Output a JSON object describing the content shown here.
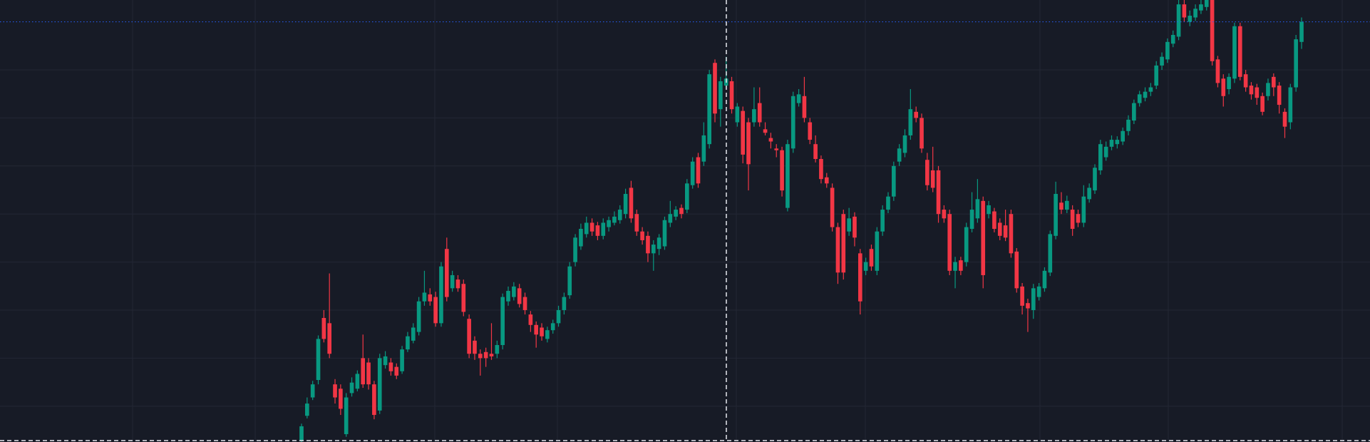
{
  "chart_data": {
    "type": "candlestick",
    "up_color": "#089981",
    "down_color": "#f23645",
    "grid": true,
    "price_line_color": "#2962ff",
    "ylim": [
      14,
      520
    ],
    "yticks": [
      55,
      110,
      165,
      220,
      275,
      330,
      385,
      440
    ],
    "price_line": 495,
    "candles": [
      {
        "open": 15,
        "high": 35,
        "low": 14,
        "close": 32
      },
      {
        "open": 44,
        "high": 65,
        "low": 41,
        "close": 58
      },
      {
        "open": 65,
        "high": 84,
        "low": 62,
        "close": 80
      },
      {
        "open": 85,
        "high": 136,
        "low": 80,
        "close": 132
      },
      {
        "open": 156,
        "high": 165,
        "low": 128,
        "close": 132
      },
      {
        "open": 150,
        "high": 207,
        "low": 110,
        "close": 115
      },
      {
        "open": 80,
        "high": 86,
        "low": 58,
        "close": 65
      },
      {
        "open": 75,
        "high": 80,
        "low": 45,
        "close": 52
      },
      {
        "open": 23,
        "high": 70,
        "low": 20,
        "close": 65
      },
      {
        "open": 70,
        "high": 88,
        "low": 66,
        "close": 82
      },
      {
        "open": 75,
        "high": 96,
        "low": 72,
        "close": 92
      },
      {
        "open": 110,
        "high": 137,
        "low": 76,
        "close": 80
      },
      {
        "open": 105,
        "high": 110,
        "low": 74,
        "close": 80
      },
      {
        "open": 80,
        "high": 84,
        "low": 40,
        "close": 45
      },
      {
        "open": 50,
        "high": 115,
        "low": 46,
        "close": 110
      },
      {
        "open": 102,
        "high": 118,
        "low": 98,
        "close": 112
      },
      {
        "open": 105,
        "high": 110,
        "low": 90,
        "close": 95
      },
      {
        "open": 100,
        "high": 104,
        "low": 86,
        "close": 90
      },
      {
        "open": 95,
        "high": 124,
        "low": 92,
        "close": 120
      },
      {
        "open": 120,
        "high": 140,
        "low": 117,
        "close": 135
      },
      {
        "open": 130,
        "high": 150,
        "low": 127,
        "close": 145
      },
      {
        "open": 140,
        "high": 180,
        "low": 136,
        "close": 175
      },
      {
        "open": 175,
        "high": 210,
        "low": 170,
        "close": 185
      },
      {
        "open": 183,
        "high": 190,
        "low": 170,
        "close": 175
      },
      {
        "open": 180,
        "high": 186,
        "low": 146,
        "close": 150
      },
      {
        "open": 150,
        "high": 220,
        "low": 146,
        "close": 215
      },
      {
        "open": 235,
        "high": 248,
        "low": 175,
        "close": 180
      },
      {
        "open": 190,
        "high": 210,
        "low": 186,
        "close": 205
      },
      {
        "open": 200,
        "high": 205,
        "low": 186,
        "close": 190
      },
      {
        "open": 195,
        "high": 200,
        "low": 158,
        "close": 163
      },
      {
        "open": 155,
        "high": 160,
        "low": 110,
        "close": 115
      },
      {
        "open": 130,
        "high": 135,
        "low": 108,
        "close": 115
      },
      {
        "open": 115,
        "high": 120,
        "low": 90,
        "close": 110
      },
      {
        "open": 117,
        "high": 122,
        "low": 100,
        "close": 110
      },
      {
        "open": 115,
        "high": 150,
        "low": 108,
        "close": 112
      },
      {
        "open": 115,
        "high": 130,
        "low": 110,
        "close": 125
      },
      {
        "open": 125,
        "high": 184,
        "low": 120,
        "close": 180
      },
      {
        "open": 175,
        "high": 192,
        "low": 170,
        "close": 187
      },
      {
        "open": 180,
        "high": 197,
        "low": 176,
        "close": 192
      },
      {
        "open": 190,
        "high": 195,
        "low": 168,
        "close": 172
      },
      {
        "open": 180,
        "high": 185,
        "low": 160,
        "close": 165
      },
      {
        "open": 160,
        "high": 164,
        "low": 140,
        "close": 148
      },
      {
        "open": 148,
        "high": 152,
        "low": 122,
        "close": 137
      },
      {
        "open": 145,
        "high": 150,
        "low": 130,
        "close": 135
      },
      {
        "open": 132,
        "high": 146,
        "low": 128,
        "close": 142
      },
      {
        "open": 142,
        "high": 154,
        "low": 138,
        "close": 150
      },
      {
        "open": 150,
        "high": 170,
        "low": 146,
        "close": 165
      },
      {
        "open": 165,
        "high": 185,
        "low": 160,
        "close": 180
      },
      {
        "open": 182,
        "high": 220,
        "low": 178,
        "close": 215
      },
      {
        "open": 220,
        "high": 252,
        "low": 215,
        "close": 248
      },
      {
        "open": 238,
        "high": 264,
        "low": 234,
        "close": 258
      },
      {
        "open": 252,
        "high": 272,
        "low": 248,
        "close": 265
      },
      {
        "open": 265,
        "high": 270,
        "low": 250,
        "close": 255
      },
      {
        "open": 262,
        "high": 266,
        "low": 245,
        "close": 250
      },
      {
        "open": 250,
        "high": 270,
        "low": 246,
        "close": 265
      },
      {
        "open": 260,
        "high": 272,
        "low": 255,
        "close": 268
      },
      {
        "open": 265,
        "high": 278,
        "low": 262,
        "close": 272
      },
      {
        "open": 268,
        "high": 285,
        "low": 264,
        "close": 280
      },
      {
        "open": 275,
        "high": 304,
        "low": 270,
        "close": 298
      },
      {
        "open": 305,
        "high": 313,
        "low": 265,
        "close": 270
      },
      {
        "open": 275,
        "high": 280,
        "low": 250,
        "close": 255
      },
      {
        "open": 255,
        "high": 260,
        "low": 240,
        "close": 245
      },
      {
        "open": 250,
        "high": 255,
        "low": 220,
        "close": 230
      },
      {
        "open": 230,
        "high": 245,
        "low": 210,
        "close": 240
      },
      {
        "open": 235,
        "high": 252,
        "low": 228,
        "close": 248
      },
      {
        "open": 238,
        "high": 272,
        "low": 234,
        "close": 268
      },
      {
        "open": 265,
        "high": 290,
        "low": 260,
        "close": 275
      },
      {
        "open": 272,
        "high": 284,
        "low": 268,
        "close": 280
      },
      {
        "open": 282,
        "high": 286,
        "low": 270,
        "close": 275
      },
      {
        "open": 280,
        "high": 315,
        "low": 276,
        "close": 310
      },
      {
        "open": 308,
        "high": 340,
        "low": 304,
        "close": 335
      },
      {
        "open": 340,
        "high": 345,
        "low": 305,
        "close": 310
      },
      {
        "open": 335,
        "high": 380,
        "low": 330,
        "close": 365
      },
      {
        "open": 355,
        "high": 440,
        "low": 350,
        "close": 435
      },
      {
        "open": 448,
        "high": 452,
        "low": 380,
        "close": 390
      },
      {
        "open": 395,
        "high": 432,
        "low": 375,
        "close": 427
      },
      {
        "open": 422,
        "high": 455,
        "low": 418,
        "close": 430
      },
      {
        "open": 427,
        "high": 432,
        "low": 390,
        "close": 395
      },
      {
        "open": 380,
        "high": 402,
        "low": 375,
        "close": 398
      },
      {
        "open": 393,
        "high": 398,
        "low": 333,
        "close": 343
      },
      {
        "open": 380,
        "high": 385,
        "low": 302,
        "close": 332
      },
      {
        "open": 380,
        "high": 420,
        "low": 375,
        "close": 395
      },
      {
        "open": 402,
        "high": 420,
        "low": 375,
        "close": 380
      },
      {
        "open": 372,
        "high": 380,
        "low": 365,
        "close": 368
      },
      {
        "open": 362,
        "high": 368,
        "low": 350,
        "close": 358
      },
      {
        "open": 350,
        "high": 355,
        "low": 340,
        "close": 348
      },
      {
        "open": 348,
        "high": 352,
        "low": 295,
        "close": 302
      },
      {
        "open": 282,
        "high": 360,
        "low": 278,
        "close": 355
      },
      {
        "open": 350,
        "high": 415,
        "low": 345,
        "close": 410
      },
      {
        "open": 402,
        "high": 418,
        "low": 398,
        "close": 412
      },
      {
        "open": 410,
        "high": 432,
        "low": 380,
        "close": 385
      },
      {
        "open": 380,
        "high": 385,
        "low": 355,
        "close": 360
      },
      {
        "open": 355,
        "high": 365,
        "low": 334,
        "close": 338
      },
      {
        "open": 338,
        "high": 342,
        "low": 310,
        "close": 315
      },
      {
        "open": 317,
        "high": 322,
        "low": 305,
        "close": 310
      },
      {
        "open": 305,
        "high": 310,
        "low": 255,
        "close": 260
      },
      {
        "open": 260,
        "high": 265,
        "low": 195,
        "close": 208
      },
      {
        "open": 275,
        "high": 280,
        "low": 200,
        "close": 208
      },
      {
        "open": 255,
        "high": 282,
        "low": 250,
        "close": 270
      },
      {
        "open": 272,
        "high": 277,
        "low": 238,
        "close": 248
      },
      {
        "open": 230,
        "high": 235,
        "low": 160,
        "close": 175
      },
      {
        "open": 210,
        "high": 225,
        "low": 205,
        "close": 220
      },
      {
        "open": 235,
        "high": 240,
        "low": 210,
        "close": 215
      },
      {
        "open": 210,
        "high": 260,
        "low": 205,
        "close": 255
      },
      {
        "open": 255,
        "high": 285,
        "low": 250,
        "close": 280
      },
      {
        "open": 280,
        "high": 300,
        "low": 276,
        "close": 295
      },
      {
        "open": 295,
        "high": 335,
        "low": 290,
        "close": 330
      },
      {
        "open": 335,
        "high": 355,
        "low": 330,
        "close": 350
      },
      {
        "open": 345,
        "high": 372,
        "low": 340,
        "close": 365
      },
      {
        "open": 365,
        "high": 418,
        "low": 360,
        "close": 395
      },
      {
        "open": 392,
        "high": 398,
        "low": 380,
        "close": 385
      },
      {
        "open": 385,
        "high": 390,
        "low": 345,
        "close": 350
      },
      {
        "open": 337,
        "high": 345,
        "low": 302,
        "close": 308
      },
      {
        "open": 325,
        "high": 352,
        "low": 300,
        "close": 305
      },
      {
        "open": 325,
        "high": 330,
        "low": 265,
        "close": 275
      },
      {
        "open": 280,
        "high": 285,
        "low": 265,
        "close": 270
      },
      {
        "open": 275,
        "high": 280,
        "low": 205,
        "close": 210
      },
      {
        "open": 210,
        "high": 226,
        "low": 190,
        "close": 220
      },
      {
        "open": 222,
        "high": 226,
        "low": 205,
        "close": 210
      },
      {
        "open": 220,
        "high": 265,
        "low": 215,
        "close": 260
      },
      {
        "open": 258,
        "high": 300,
        "low": 254,
        "close": 280
      },
      {
        "open": 270,
        "high": 315,
        "low": 265,
        "close": 292
      },
      {
        "open": 290,
        "high": 295,
        "low": 190,
        "close": 205
      },
      {
        "open": 275,
        "high": 290,
        "low": 270,
        "close": 285
      },
      {
        "open": 278,
        "high": 282,
        "low": 254,
        "close": 258
      },
      {
        "open": 265,
        "high": 270,
        "low": 245,
        "close": 250
      },
      {
        "open": 262,
        "high": 280,
        "low": 244,
        "close": 248
      },
      {
        "open": 275,
        "high": 280,
        "low": 225,
        "close": 230
      },
      {
        "open": 232,
        "high": 236,
        "low": 185,
        "close": 190
      },
      {
        "open": 192,
        "high": 196,
        "low": 160,
        "close": 170
      },
      {
        "open": 173,
        "high": 178,
        "low": 140,
        "close": 167
      },
      {
        "open": 165,
        "high": 195,
        "low": 155,
        "close": 190
      },
      {
        "open": 180,
        "high": 196,
        "low": 176,
        "close": 192
      },
      {
        "open": 190,
        "high": 214,
        "low": 186,
        "close": 210
      },
      {
        "open": 208,
        "high": 256,
        "low": 204,
        "close": 252
      },
      {
        "open": 250,
        "high": 312,
        "low": 246,
        "close": 298
      },
      {
        "open": 288,
        "high": 300,
        "low": 275,
        "close": 280
      },
      {
        "open": 280,
        "high": 296,
        "low": 276,
        "close": 290
      },
      {
        "open": 280,
        "high": 285,
        "low": 250,
        "close": 258
      },
      {
        "open": 275,
        "high": 280,
        "low": 260,
        "close": 265
      },
      {
        "open": 265,
        "high": 308,
        "low": 260,
        "close": 295
      },
      {
        "open": 292,
        "high": 310,
        "low": 288,
        "close": 305
      },
      {
        "open": 302,
        "high": 332,
        "low": 298,
        "close": 328
      },
      {
        "open": 325,
        "high": 360,
        "low": 320,
        "close": 355
      },
      {
        "open": 340,
        "high": 358,
        "low": 336,
        "close": 352
      },
      {
        "open": 352,
        "high": 365,
        "low": 348,
        "close": 360
      },
      {
        "open": 355,
        "high": 364,
        "low": 350,
        "close": 360
      },
      {
        "open": 358,
        "high": 374,
        "low": 354,
        "close": 370
      },
      {
        "open": 370,
        "high": 388,
        "low": 365,
        "close": 383
      },
      {
        "open": 382,
        "high": 406,
        "low": 378,
        "close": 402
      },
      {
        "open": 402,
        "high": 416,
        "low": 398,
        "close": 412
      },
      {
        "open": 408,
        "high": 420,
        "low": 404,
        "close": 415
      },
      {
        "open": 415,
        "high": 425,
        "low": 410,
        "close": 420
      },
      {
        "open": 422,
        "high": 450,
        "low": 418,
        "close": 445
      },
      {
        "open": 445,
        "high": 460,
        "low": 440,
        "close": 455
      },
      {
        "open": 452,
        "high": 476,
        "low": 448,
        "close": 472
      },
      {
        "open": 470,
        "high": 485,
        "low": 466,
        "close": 480
      },
      {
        "open": 478,
        "high": 520,
        "low": 474,
        "close": 515
      },
      {
        "open": 515,
        "high": 520,
        "low": 495,
        "close": 500
      },
      {
        "open": 495,
        "high": 508,
        "low": 490,
        "close": 502
      },
      {
        "open": 500,
        "high": 515,
        "low": 496,
        "close": 510
      },
      {
        "open": 508,
        "high": 520,
        "low": 504,
        "close": 515
      },
      {
        "open": 512,
        "high": 520,
        "low": 508,
        "close": 520
      },
      {
        "open": 520,
        "high": 520,
        "low": 445,
        "close": 450
      },
      {
        "open": 452,
        "high": 456,
        "low": 420,
        "close": 425
      },
      {
        "open": 430,
        "high": 435,
        "low": 398,
        "close": 410
      },
      {
        "open": 418,
        "high": 436,
        "low": 412,
        "close": 432
      },
      {
        "open": 430,
        "high": 494,
        "low": 425,
        "close": 490
      },
      {
        "open": 490,
        "high": 494,
        "low": 428,
        "close": 432
      },
      {
        "open": 435,
        "high": 440,
        "low": 415,
        "close": 420
      },
      {
        "open": 422,
        "high": 426,
        "low": 406,
        "close": 412
      },
      {
        "open": 420,
        "high": 424,
        "low": 400,
        "close": 408
      },
      {
        "open": 410,
        "high": 414,
        "low": 388,
        "close": 392
      },
      {
        "open": 410,
        "high": 430,
        "low": 405,
        "close": 425
      },
      {
        "open": 432,
        "high": 436,
        "low": 410,
        "close": 420
      },
      {
        "open": 422,
        "high": 426,
        "low": 390,
        "close": 400
      },
      {
        "open": 392,
        "high": 396,
        "low": 362,
        "close": 375
      },
      {
        "open": 380,
        "high": 424,
        "low": 372,
        "close": 420
      },
      {
        "open": 420,
        "high": 480,
        "low": 415,
        "close": 475
      },
      {
        "open": 472,
        "high": 500,
        "low": 464,
        "close": 495
      }
    ]
  }
}
